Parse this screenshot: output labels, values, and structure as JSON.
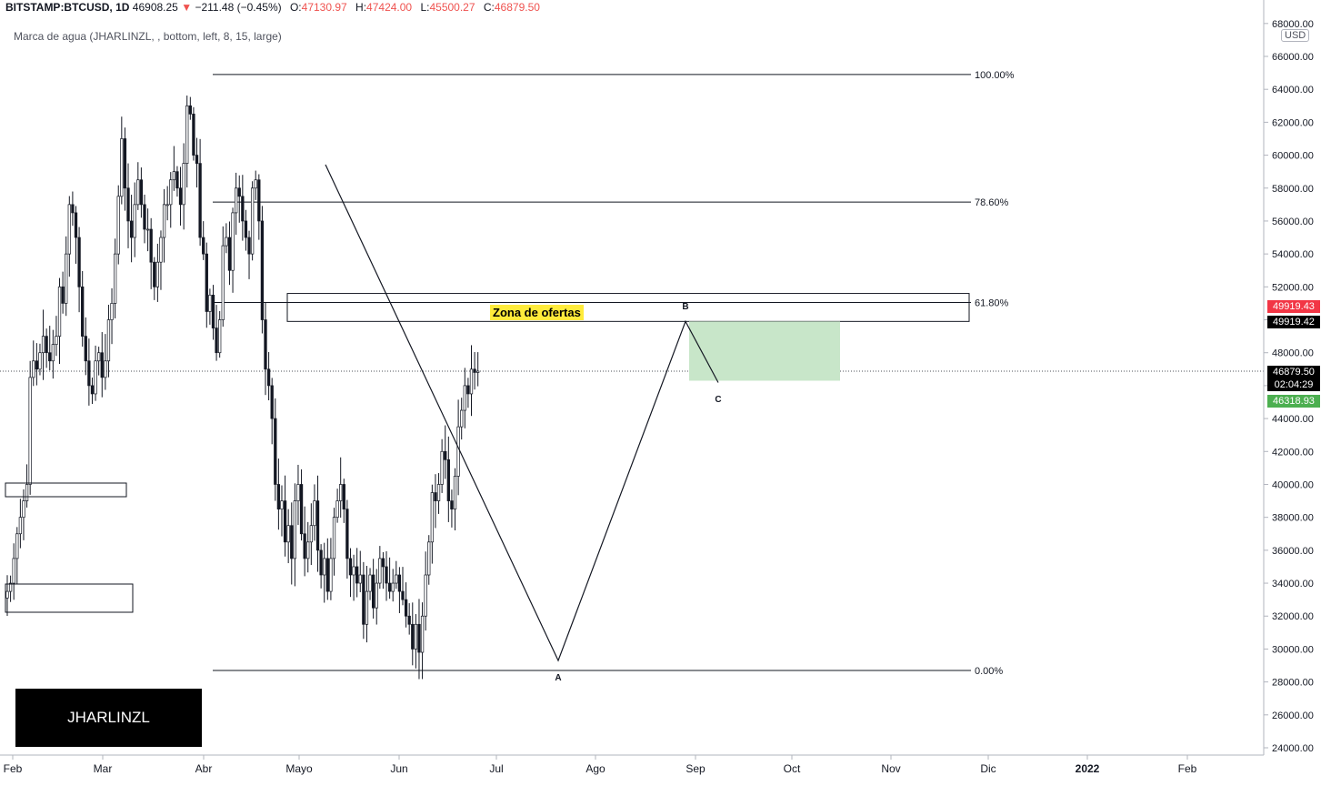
{
  "header": {
    "symbol": "BITSTAMP:BTCUSD, 1D",
    "last": "46908.25",
    "arrow": "▼",
    "change": "−211.48 (−0.45%)",
    "o_label": "O:",
    "o_value": "47130.97",
    "h_label": "H:",
    "h_value": "47424.00",
    "l_label": "L:",
    "l_value": "45500.27",
    "c_label": "C:",
    "c_value": "46879.50"
  },
  "subtitle": "Marca de agua (JHARLINZL, , bottom, left, 8, 15, large)",
  "watermark": "JHARLINZL",
  "zone_label": "Zona de ofertas",
  "currency": "USD",
  "price_tags": {
    "red": "49919.43",
    "black": "49919.42",
    "current": "46879.50",
    "countdown": "02:04:29",
    "green": "46318.93"
  },
  "colors": {
    "up_down_candle": "#131722",
    "current_tag": "#000000",
    "red_tag": "#f23645",
    "green_tag": "#4caf50",
    "green_zone": "#c8e6c9",
    "zone_label_bg": "#ffeb3b"
  },
  "chart_data": {
    "type": "candlestick",
    "y_ticks": [
      24000,
      26000,
      28000,
      30000,
      32000,
      34000,
      36000,
      38000,
      40000,
      42000,
      44000,
      46000,
      48000,
      50000,
      52000,
      54000,
      56000,
      58000,
      60000,
      62000,
      64000,
      66000,
      68000
    ],
    "ylim": [
      23300,
      68300
    ],
    "x_ticks": [
      "Feb",
      "Mar",
      "Abr",
      "Mayo",
      "Jun",
      "Jul",
      "Ago",
      "Sep",
      "Oct",
      "Nov",
      "Dic",
      "2022",
      "Feb"
    ],
    "fib_levels": [
      {
        "label": "100.00%",
        "price": 64900
      },
      {
        "label": "78.60%",
        "price": 57150
      },
      {
        "label": "61.80%",
        "price": 51050
      },
      {
        "label": "0.00%",
        "price": 28700
      }
    ],
    "abc_points": [
      {
        "label": "A",
        "price": 29300
      },
      {
        "label": "B",
        "price": 49900
      },
      {
        "label": "C",
        "price": 46300
      }
    ],
    "supply_zone": {
      "top": 51600,
      "bottom": 49900
    },
    "target_zone": {
      "top": 49900,
      "bottom": 46300
    },
    "current_price": 46879.5,
    "closes": [
      33500,
      34000,
      35500,
      37000,
      38000,
      39000,
      40000,
      46500,
      47500,
      47000,
      48000,
      49000,
      48000,
      47500,
      48500,
      49000,
      52000,
      51000,
      54000,
      57000,
      56500,
      55000,
      52000,
      49000,
      47500,
      46000,
      45500,
      47500,
      48000,
      46500,
      47500,
      50000,
      51000,
      54000,
      57500,
      61000,
      58000,
      56000,
      55000,
      57000,
      58500,
      57000,
      55500,
      55500,
      53500,
      52000,
      53500,
      55000,
      57000,
      57000,
      58500,
      59000,
      58000,
      57000,
      59500,
      63000,
      62500,
      60000,
      59500,
      55000,
      54000,
      50500,
      51500,
      49500,
      48000,
      50000,
      54500,
      55000,
      53000,
      56500,
      58000,
      57500,
      56000,
      55000,
      54000,
      58000,
      58500,
      56000,
      50000,
      47000,
      46000,
      44000,
      40000,
      38500,
      39000,
      36500,
      37500,
      35500,
      39000,
      40000,
      37000,
      35500,
      36500,
      37500,
      39000,
      36000,
      34500,
      35500,
      33500,
      35500,
      38000,
      39000,
      40000,
      38500,
      35500,
      34500,
      35000,
      34000,
      34500,
      31500,
      33500,
      34500,
      32500,
      34000,
      35500,
      35000,
      34000,
      33500,
      34000,
      34500,
      33500,
      33000,
      32000,
      31500,
      30000,
      31500,
      29800,
      32000,
      34500,
      36500,
      39500,
      39000,
      40000,
      42000,
      41500,
      39000,
      38500,
      40500,
      43500,
      44500,
      46000,
      45500,
      47000,
      46800,
      46880
    ]
  }
}
